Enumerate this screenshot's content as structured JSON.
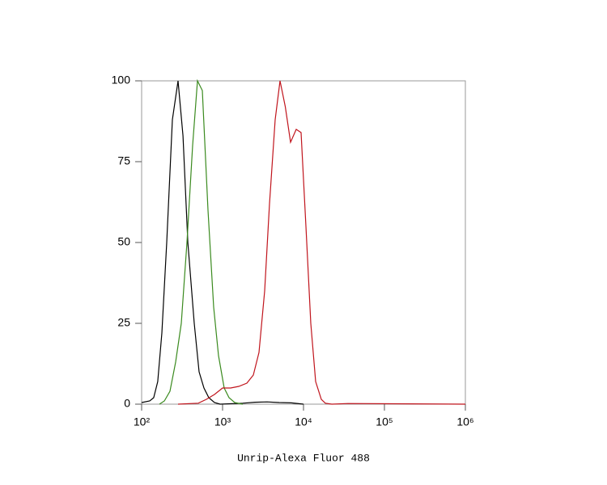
{
  "chart_data": {
    "type": "line",
    "xlabel": "Unrip-Alexa Fluor 488",
    "xscale": "log",
    "xlim": [
      100,
      1000000
    ],
    "xticks": [
      {
        "value": 100,
        "label": "10²"
      },
      {
        "value": 1000,
        "label": "10³"
      },
      {
        "value": 10000,
        "label": "10⁴"
      },
      {
        "value": 100000,
        "label": "10⁵"
      },
      {
        "value": 1000000,
        "label": "10⁶"
      }
    ],
    "ylim": [
      0,
      100
    ],
    "yticks": [
      0,
      25,
      50,
      75,
      100
    ],
    "series": [
      {
        "color": "#000000",
        "x": [
          100,
          126,
          141,
          158,
          178,
          204,
          240,
          282,
          324,
          372,
          447,
          513,
          589,
          676,
          794,
          933,
          1778,
          2512,
          3548,
          5012,
          7079,
          10000
        ],
        "values": [
          0.5,
          1,
          2,
          7,
          22,
          50,
          88,
          100,
          83,
          50,
          25,
          10,
          5,
          2,
          0.5,
          0,
          0.3,
          0.6,
          0.7,
          0.5,
          0.4,
          0
        ]
      },
      {
        "color": "#3a8a1e",
        "x": [
          166,
          191,
          224,
          263,
          309,
          363,
          427,
          490,
          562,
          661,
          776,
          891,
          1047,
          1202,
          1413,
          1778
        ],
        "values": [
          0,
          1,
          4,
          13,
          25,
          50,
          80,
          100,
          97,
          60,
          30,
          15,
          5,
          2,
          0.5,
          0
        ]
      },
      {
        "color": "#c0141c",
        "x": [
          282,
          501,
          631,
          794,
          1000,
          1259,
          1585,
          1995,
          2399,
          2818,
          3311,
          3802,
          4467,
          5129,
          5957,
          6918,
          8128,
          9333,
          10715,
          12303,
          14125,
          16596,
          18621,
          22387,
          35481,
          1000000
        ],
        "values": [
          0,
          0.3,
          1.5,
          3,
          5,
          5,
          5.5,
          6.5,
          9,
          16,
          35,
          62,
          88,
          100,
          92,
          81,
          85,
          84,
          55,
          25,
          7,
          1.5,
          0.3,
          0,
          0.2,
          0
        ]
      }
    ]
  }
}
